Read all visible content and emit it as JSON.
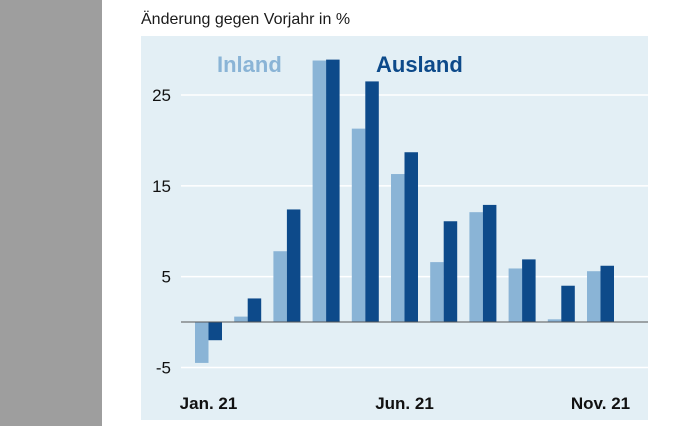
{
  "chart_data": {
    "type": "bar",
    "subtitle": "Änderung gegen Vorjahr in %",
    "categories": [
      "Jan. 21",
      "Feb. 21",
      "Mär. 21",
      "Apr. 21",
      "Mai 21",
      "Jun. 21",
      "Jul. 21",
      "Aug. 21",
      "Sep. 21",
      "Okt. 21",
      "Nov. 21"
    ],
    "x_tick_labels": [
      "Jan. 21",
      "Jun. 21",
      "Nov. 21"
    ],
    "y_ticks": [
      "25",
      "15",
      "5",
      "-5"
    ],
    "y_tick_values": [
      25,
      15,
      5,
      -5
    ],
    "ylim": [
      -5.5,
      31.5
    ],
    "grid": true,
    "legend_position": "top",
    "series": [
      {
        "name": "Inland",
        "color": "#8ab4d6",
        "values": [
          -4.5,
          0.6,
          7.8,
          28.8,
          21.3,
          16.3,
          6.6,
          12.1,
          5.9,
          0.3,
          5.6
        ]
      },
      {
        "name": "Ausland",
        "color": "#0d4a8a",
        "values": [
          -2.0,
          2.6,
          12.4,
          28.9,
          26.5,
          18.7,
          11.1,
          12.9,
          6.9,
          4.0,
          6.2
        ]
      }
    ]
  }
}
